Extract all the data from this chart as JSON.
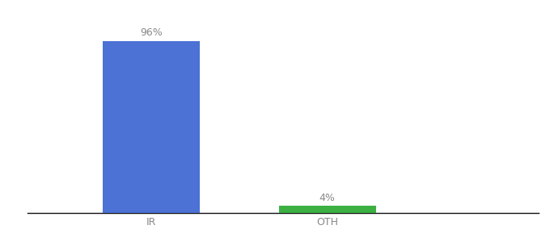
{
  "categories": [
    "IR",
    "OTH"
  ],
  "values": [
    96,
    4
  ],
  "bar_colors": [
    "#4b72d4",
    "#3cb043"
  ],
  "labels": [
    "96%",
    "4%"
  ],
  "background_color": "#ffffff",
  "text_color": "#888888",
  "label_fontsize": 9,
  "tick_fontsize": 9,
  "ylim": [
    0,
    108
  ],
  "x_positions": [
    1,
    2
  ],
  "bar_width": 0.55,
  "xlim": [
    0.3,
    3.2
  ]
}
